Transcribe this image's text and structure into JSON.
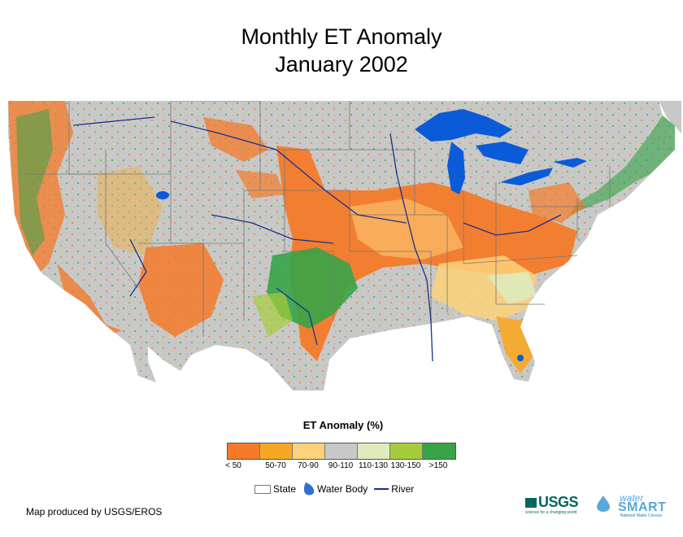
{
  "title": {
    "line1": "Monthly ET Anomaly",
    "line2": "January 2002"
  },
  "legend": {
    "title": "ET Anomaly (%)",
    "classes": [
      {
        "label": "< 50",
        "color": "#f47a2a"
      },
      {
        "label": "50-70",
        "color": "#f7a724"
      },
      {
        "label": "70-90",
        "color": "#fdd27a"
      },
      {
        "label": "90-110",
        "color": "#c8c8c8"
      },
      {
        "label": "110-130",
        "color": "#dfeabd"
      },
      {
        "label": "130-150",
        "color": "#a5cc3d"
      },
      {
        "label": ">150",
        "color": "#36a447"
      }
    ]
  },
  "reference_legend": {
    "state_label": "State",
    "water_label": "Water Body",
    "river_label": "River"
  },
  "colors": {
    "water": "#0b5bd8",
    "river": "#1b2f8e",
    "state_border": "#777777"
  },
  "credit": "Map produced by USGS/EROS",
  "logos": {
    "usgs": "USGS",
    "usgs_tagline": "science for a changing world",
    "ws_water": "water",
    "ws_smart": "SMART",
    "ws_sub": "National Water Census"
  }
}
